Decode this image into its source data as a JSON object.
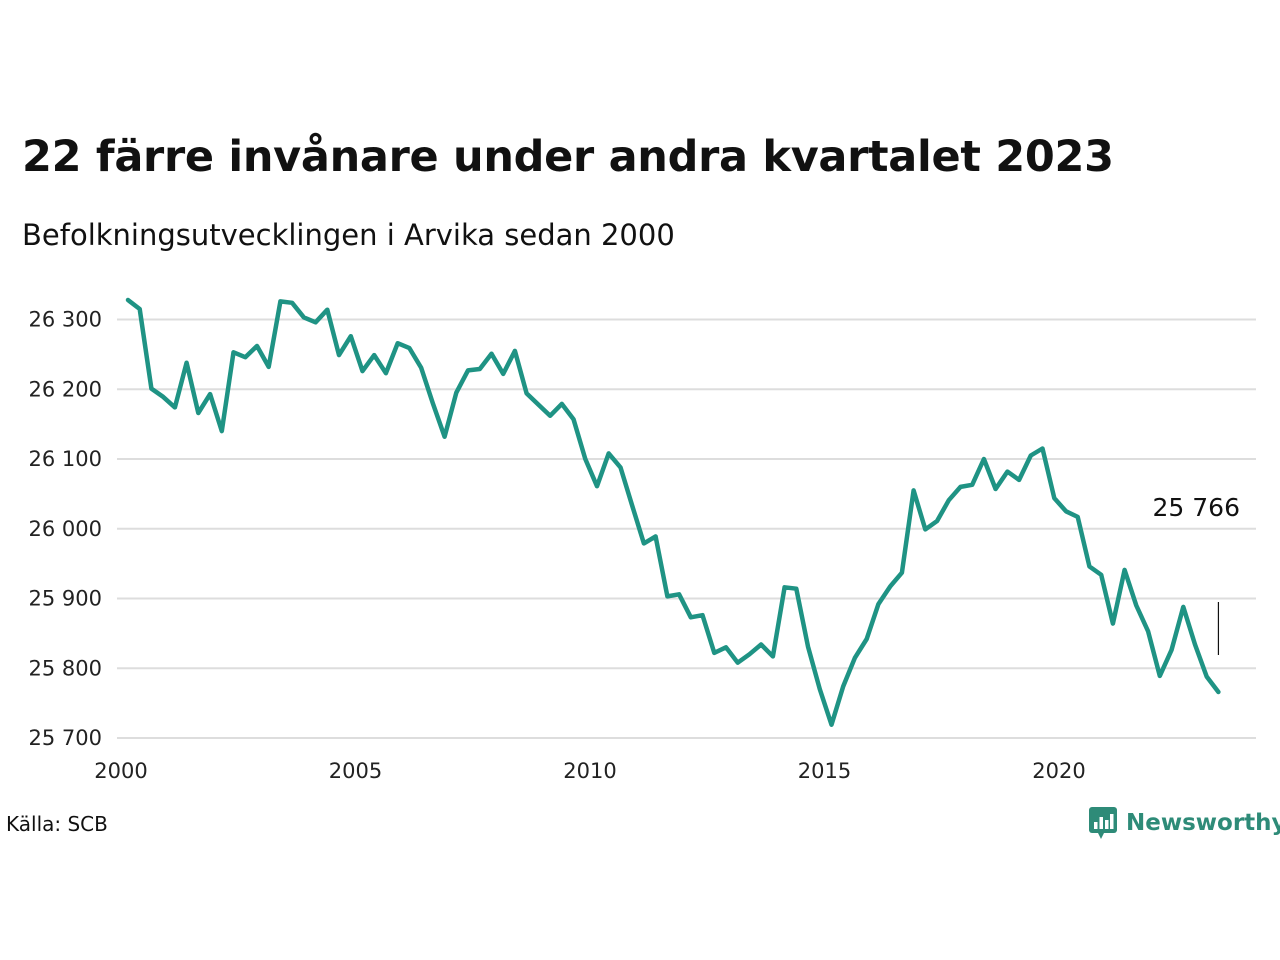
{
  "header": {
    "title": "22 färre invånare under andra kvartalet 2023",
    "subtitle": "Befolkningsutvecklingen i Arvika sedan 2000"
  },
  "footer": {
    "source": "Källa: SCB",
    "brand": "Newsworthy",
    "brand_icon": "bar-chart-logo-icon"
  },
  "colors": {
    "line": "#1f9384",
    "grid": "#dddddd",
    "brand": "#2e8b78"
  },
  "chart_data": {
    "type": "line",
    "title": "22 färre invånare under andra kvartalet 2023",
    "subtitle": "Befolkningsutvecklingen i Arvika sedan 2000",
    "xlabel": "",
    "ylabel": "",
    "xlim": [
      2000,
      2024.2
    ],
    "ylim": [
      25690,
      26340
    ],
    "x_ticks": [
      2000,
      2005,
      2010,
      2015,
      2020
    ],
    "x_tick_labels": [
      "2000",
      "2005",
      "2010",
      "2015",
      "2020"
    ],
    "y_ticks": [
      25700,
      25800,
      25900,
      26000,
      26100,
      26200,
      26300
    ],
    "y_tick_labels": [
      "25 700",
      "25 800",
      "25 900",
      "26 000",
      "26 100",
      "26 200",
      "26 300"
    ],
    "grid": "horizontal",
    "end_label": "25 766",
    "series": [
      {
        "x": [
          2000.0,
          2000.25,
          2000.5,
          2000.75,
          2001.0,
          2001.25,
          2001.5,
          2001.75,
          2002.0,
          2002.25,
          2002.5,
          2002.75,
          2003.0,
          2003.25,
          2003.5,
          2003.75,
          2004.0,
          2004.25,
          2004.5,
          2004.75,
          2005.0,
          2005.25,
          2005.5,
          2005.75,
          2006.0,
          2006.25,
          2006.5,
          2006.75,
          2007.0,
          2007.25,
          2007.5,
          2007.75,
          2008.0,
          2008.25,
          2008.5,
          2008.75,
          2009.0,
          2009.25,
          2009.5,
          2009.75,
          2010.0,
          2010.25,
          2010.5,
          2010.75,
          2011.0,
          2011.25,
          2011.5,
          2011.75,
          2012.0,
          2012.25,
          2012.5,
          2012.75,
          2013.0,
          2013.25,
          2013.5,
          2013.75,
          2014.0,
          2014.25,
          2014.5,
          2014.75,
          2015.0,
          2015.25,
          2015.5,
          2015.75,
          2016.0,
          2016.25,
          2016.5,
          2016.75,
          2017.0,
          2017.25,
          2017.5,
          2017.75,
          2018.0,
          2018.25,
          2018.5,
          2018.75,
          2019.0,
          2019.25,
          2019.5,
          2019.75,
          2020.0,
          2020.25,
          2020.5,
          2020.75,
          2021.0,
          2021.25,
          2021.5,
          2021.75,
          2022.0,
          2022.25,
          2022.5,
          2022.75,
          2023.0,
          2023.25
        ],
        "values": [
          26328,
          26315,
          26201,
          26189,
          26174,
          26238,
          26166,
          26193,
          26140,
          26253,
          26246,
          26262,
          26232,
          26326,
          26324,
          26303,
          26296,
          26314,
          26249,
          26276,
          26226,
          26249,
          26223,
          26266,
          26259,
          26231,
          26180,
          26132,
          26195,
          26227,
          26229,
          26251,
          26222,
          26255,
          26194,
          26178,
          26162,
          26179,
          26157,
          26100,
          26061,
          26108,
          26088,
          26033,
          25979,
          25989,
          25903,
          25906,
          25873,
          25876,
          25822,
          25830,
          25808,
          25820,
          25834,
          25817,
          25916,
          25914,
          25831,
          25770,
          25719,
          25774,
          25815,
          25842,
          25892,
          25917,
          25937,
          26055,
          25999,
          26011,
          26041,
          26060,
          26063,
          26100,
          26057,
          26082,
          26070,
          26105,
          26115,
          26044,
          26025,
          26017,
          25946,
          25934,
          25864,
          25941,
          25890,
          25853,
          25789,
          25826,
          25888,
          25834,
          25788,
          25766
        ]
      }
    ]
  }
}
